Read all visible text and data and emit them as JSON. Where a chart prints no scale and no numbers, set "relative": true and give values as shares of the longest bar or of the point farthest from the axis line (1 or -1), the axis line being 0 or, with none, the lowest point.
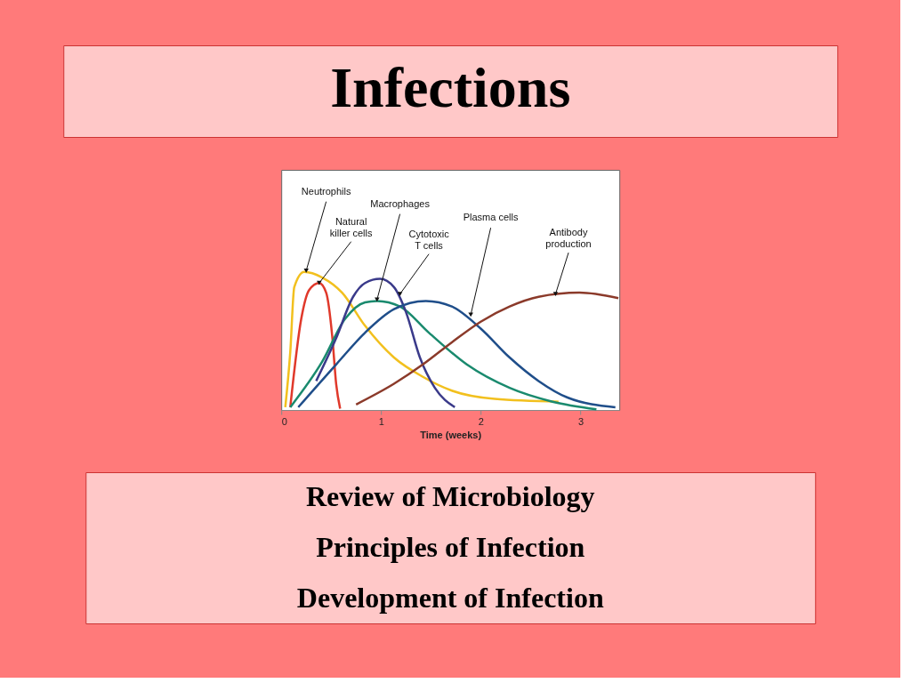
{
  "chart_data": {
    "type": "line",
    "title": "Infections",
    "xlabel": "Time (weeks)",
    "relative": true,
    "xlim": [
      0,
      3.39
    ],
    "xticks": [
      0,
      1,
      2,
      3
    ],
    "grid": false,
    "series": [
      {
        "name": "Neutrophils",
        "color": "#f2c01e",
        "x": [
          0.04,
          0.09,
          0.13,
          0.23,
          0.41,
          0.61,
          0.84,
          1.13,
          1.42,
          1.71,
          2.14,
          2.78
        ],
        "values": [
          0.02,
          0.42,
          0.89,
          1.0,
          0.96,
          0.85,
          0.61,
          0.38,
          0.24,
          0.14,
          0.08,
          0.06
        ]
      },
      {
        "name": "Natural killer cells",
        "color": "#e0392b",
        "x": [
          0.09,
          0.2,
          0.28,
          0.38,
          0.45,
          0.51,
          0.55,
          0.59
        ],
        "values": [
          0.02,
          0.66,
          0.87,
          0.92,
          0.85,
          0.54,
          0.19,
          0.01
        ]
      },
      {
        "name": "Macrophages",
        "color": "#1a8a6e",
        "x": [
          0.09,
          0.41,
          0.64,
          0.84,
          0.96,
          1.19,
          1.48,
          1.86,
          2.29,
          2.72,
          3.16
        ],
        "values": [
          0.02,
          0.35,
          0.66,
          0.78,
          0.79,
          0.75,
          0.56,
          0.33,
          0.16,
          0.06,
          0.005
        ]
      },
      {
        "name": "Cytotoxic T cells",
        "color": "#3a3a8a",
        "x": [
          0.35,
          0.55,
          0.72,
          0.84,
          0.99,
          1.13,
          1.25,
          1.39,
          1.54,
          1.74
        ],
        "values": [
          0.21,
          0.52,
          0.82,
          0.92,
          0.95,
          0.89,
          0.71,
          0.38,
          0.16,
          0.02
        ]
      },
      {
        "name": "Plasma cells",
        "color": "#1f4e8a",
        "x": [
          0.17,
          0.55,
          0.84,
          1.13,
          1.45,
          1.71,
          2.0,
          2.29,
          2.58,
          2.87,
          3.35
        ],
        "values": [
          0.02,
          0.33,
          0.56,
          0.73,
          0.79,
          0.75,
          0.59,
          0.38,
          0.21,
          0.09,
          0.02
        ]
      },
      {
        "name": "Antibody production",
        "color": "#8b3a2a",
        "x": [
          0.75,
          1.13,
          1.42,
          1.71,
          2.0,
          2.29,
          2.58,
          2.99,
          3.38
        ],
        "values": [
          0.04,
          0.19,
          0.33,
          0.49,
          0.64,
          0.75,
          0.82,
          0.85,
          0.81
        ]
      }
    ],
    "annotations": [
      "Review of Microbiology",
      "Principles of Infection",
      "Development of Infection"
    ]
  }
}
